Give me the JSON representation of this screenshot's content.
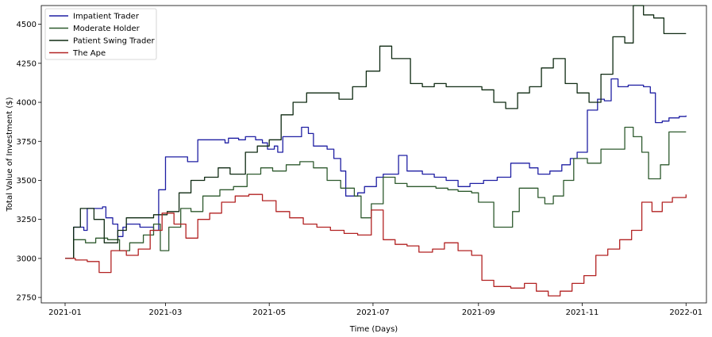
{
  "chart_data": {
    "type": "line",
    "title": "",
    "xlabel": "Time (Days)",
    "ylabel": "Total Value of Investment ($)",
    "xlim": [
      "2020-12-18",
      "2022-01-13"
    ],
    "ylim": [
      2715,
      4620
    ],
    "x_ticks": [
      "2021-01-01",
      "2021-03-01",
      "2021-05-01",
      "2021-07-01",
      "2021-09-01",
      "2021-11-01",
      "2022-01-01"
    ],
    "x_tick_labels": [
      "2021-01",
      "2021-03",
      "2021-05",
      "2021-07",
      "2021-09",
      "2021-11",
      "2022-01"
    ],
    "y_ticks": [
      2750,
      3000,
      3250,
      3500,
      3750,
      4000,
      4250,
      4500
    ],
    "legend": "top-left",
    "grid": false,
    "series": [
      {
        "name": "Impatient Trader",
        "color": "#1f1fa3",
        "x": [
          "2021-01-01",
          "2021-01-05",
          "2021-01-06",
          "2021-01-12",
          "2021-01-14",
          "2021-01-23",
          "2021-01-25",
          "2021-01-29",
          "2021-02-01",
          "2021-02-04",
          "2021-02-06",
          "2021-02-14",
          "2021-02-22",
          "2021-02-25",
          "2021-03-01",
          "2021-03-14",
          "2021-03-20",
          "2021-04-05",
          "2021-04-07",
          "2021-04-13",
          "2021-04-17",
          "2021-04-23",
          "2021-04-27",
          "2021-04-30",
          "2021-05-04",
          "2021-05-06",
          "2021-05-09",
          "2021-05-20",
          "2021-05-24",
          "2021-05-27",
          "2021-06-04",
          "2021-06-08",
          "2021-06-12",
          "2021-06-15",
          "2021-06-22",
          "2021-06-26",
          "2021-07-03",
          "2021-07-07",
          "2021-07-16",
          "2021-07-21",
          "2021-07-30",
          "2021-08-06",
          "2021-08-13",
          "2021-08-20",
          "2021-08-27",
          "2021-09-04",
          "2021-09-12",
          "2021-09-20",
          "2021-10-01",
          "2021-10-06",
          "2021-10-13",
          "2021-10-20",
          "2021-10-25",
          "2021-10-29",
          "2021-11-04",
          "2021-11-10",
          "2021-11-14",
          "2021-11-18",
          "2021-11-22",
          "2021-11-28",
          "2021-12-07",
          "2021-12-11",
          "2021-12-14",
          "2021-12-18",
          "2021-12-22",
          "2021-12-28",
          "2022-01-01"
        ],
        "values": [
          3000,
          3000,
          3200,
          3180,
          3320,
          3330,
          3260,
          3220,
          3140,
          3200,
          3220,
          3200,
          3180,
          3440,
          3650,
          3620,
          3760,
          3740,
          3770,
          3760,
          3780,
          3760,
          3740,
          3700,
          3720,
          3680,
          3780,
          3840,
          3800,
          3720,
          3700,
          3640,
          3560,
          3400,
          3420,
          3460,
          3520,
          3540,
          3660,
          3560,
          3540,
          3520,
          3500,
          3460,
          3480,
          3500,
          3520,
          3610,
          3580,
          3540,
          3560,
          3600,
          3640,
          3680,
          3950,
          4020,
          4010,
          4150,
          4100,
          4110,
          4100,
          4060,
          3870,
          3880,
          3900,
          3910,
          3915
        ]
      },
      {
        "name": "Moderate Holder",
        "color": "#2e5a2e",
        "x": [
          "2021-01-01",
          "2021-01-06",
          "2021-01-13",
          "2021-01-19",
          "2021-01-26",
          "2021-02-02",
          "2021-02-08",
          "2021-02-16",
          "2021-02-22",
          "2021-02-26",
          "2021-03-03",
          "2021-03-10",
          "2021-03-16",
          "2021-03-23",
          "2021-04-02",
          "2021-04-10",
          "2021-04-18",
          "2021-04-26",
          "2021-05-03",
          "2021-05-11",
          "2021-05-19",
          "2021-05-27",
          "2021-06-04",
          "2021-06-12",
          "2021-06-20",
          "2021-06-24",
          "2021-06-30",
          "2021-07-07",
          "2021-07-14",
          "2021-07-21",
          "2021-07-28",
          "2021-08-07",
          "2021-08-14",
          "2021-08-20",
          "2021-08-28",
          "2021-09-01",
          "2021-09-10",
          "2021-09-21",
          "2021-09-25",
          "2021-10-06",
          "2021-10-10",
          "2021-10-15",
          "2021-10-21",
          "2021-10-27",
          "2021-11-04",
          "2021-11-12",
          "2021-11-19",
          "2021-11-26",
          "2021-12-01",
          "2021-12-06",
          "2021-12-10",
          "2021-12-17",
          "2021-12-22",
          "2022-01-01"
        ],
        "values": [
          3000,
          3120,
          3100,
          3130,
          3120,
          3050,
          3100,
          3150,
          3220,
          3050,
          3200,
          3320,
          3300,
          3400,
          3440,
          3460,
          3540,
          3580,
          3560,
          3600,
          3620,
          3580,
          3500,
          3450,
          3400,
          3260,
          3350,
          3520,
          3480,
          3460,
          3460,
          3450,
          3440,
          3430,
          3420,
          3360,
          3200,
          3300,
          3450,
          3390,
          3350,
          3400,
          3500,
          3640,
          3610,
          3700,
          3700,
          3840,
          3780,
          3680,
          3510,
          3600,
          3810,
          3810
        ]
      },
      {
        "name": "Patient Swing Trader",
        "color": "#0f2a12",
        "x": [
          "2021-01-01",
          "2021-01-06",
          "2021-01-10",
          "2021-01-18",
          "2021-01-24",
          "2021-02-01",
          "2021-02-06",
          "2021-02-14",
          "2021-02-22",
          "2021-03-02",
          "2021-03-09",
          "2021-03-16",
          "2021-03-24",
          "2021-04-01",
          "2021-04-08",
          "2021-04-17",
          "2021-04-24",
          "2021-05-01",
          "2021-05-08",
          "2021-05-15",
          "2021-05-23",
          "2021-06-03",
          "2021-06-11",
          "2021-06-19",
          "2021-06-27",
          "2021-07-05",
          "2021-07-12",
          "2021-07-23",
          "2021-07-30",
          "2021-08-06",
          "2021-08-13",
          "2021-08-20",
          "2021-08-27",
          "2021-09-03",
          "2021-09-10",
          "2021-09-17",
          "2021-09-24",
          "2021-10-01",
          "2021-10-08",
          "2021-10-15",
          "2021-10-22",
          "2021-10-29",
          "2021-11-05",
          "2021-11-12",
          "2021-11-19",
          "2021-11-26",
          "2021-12-01",
          "2021-12-07",
          "2021-12-13",
          "2021-12-19",
          "2021-12-26",
          "2022-01-01"
        ],
        "values": [
          3000,
          3200,
          3320,
          3250,
          3100,
          3180,
          3260,
          3260,
          3280,
          3300,
          3420,
          3500,
          3520,
          3580,
          3540,
          3680,
          3720,
          3760,
          3920,
          4000,
          4060,
          4060,
          4020,
          4100,
          4200,
          4360,
          4280,
          4120,
          4100,
          4120,
          4100,
          4100,
          4100,
          4080,
          4000,
          3960,
          4060,
          4100,
          4220,
          4280,
          4120,
          4060,
          4000,
          4180,
          4420,
          4380,
          4620,
          4560,
          4540,
          4440,
          4440,
          4440
        ]
      },
      {
        "name": "The Ape",
        "color": "#b22222",
        "x": [
          "2021-01-01",
          "2021-01-07",
          "2021-01-14",
          "2021-01-21",
          "2021-01-28",
          "2021-02-06",
          "2021-02-13",
          "2021-02-20",
          "2021-02-27",
          "2021-03-06",
          "2021-03-13",
          "2021-03-20",
          "2021-03-27",
          "2021-04-03",
          "2021-04-11",
          "2021-04-19",
          "2021-04-27",
          "2021-05-05",
          "2021-05-13",
          "2021-05-21",
          "2021-05-29",
          "2021-06-06",
          "2021-06-14",
          "2021-06-22",
          "2021-06-30",
          "2021-07-07",
          "2021-07-14",
          "2021-07-21",
          "2021-07-28",
          "2021-08-05",
          "2021-08-12",
          "2021-08-20",
          "2021-08-28",
          "2021-09-03",
          "2021-09-10",
          "2021-09-20",
          "2021-09-28",
          "2021-10-05",
          "2021-10-12",
          "2021-10-19",
          "2021-10-26",
          "2021-11-02",
          "2021-11-09",
          "2021-11-16",
          "2021-11-23",
          "2021-11-30",
          "2021-12-06",
          "2021-12-12",
          "2021-12-18",
          "2021-12-24",
          "2022-01-01"
        ],
        "values": [
          3000,
          2990,
          2980,
          2910,
          3050,
          3020,
          3060,
          3180,
          3290,
          3220,
          3130,
          3250,
          3290,
          3360,
          3400,
          3410,
          3370,
          3300,
          3260,
          3220,
          3200,
          3180,
          3160,
          3150,
          3310,
          3120,
          3090,
          3080,
          3040,
          3060,
          3100,
          3050,
          3020,
          2860,
          2820,
          2810,
          2840,
          2790,
          2760,
          2790,
          2840,
          2890,
          3020,
          3060,
          3120,
          3180,
          3360,
          3300,
          3360,
          3390,
          3410
        ]
      }
    ]
  }
}
